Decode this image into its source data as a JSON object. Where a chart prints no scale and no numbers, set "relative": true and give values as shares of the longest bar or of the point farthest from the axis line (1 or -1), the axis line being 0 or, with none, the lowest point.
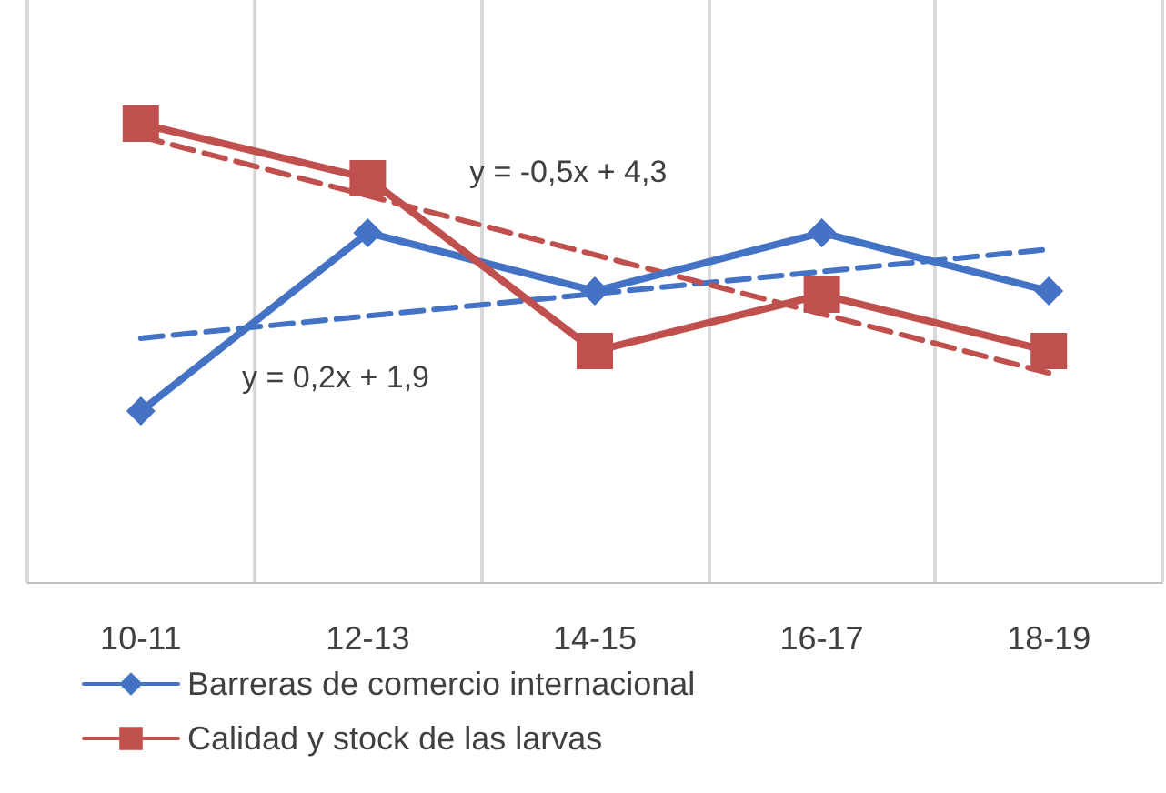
{
  "chart_data": {
    "type": "line",
    "relative": true,
    "categories": [
      "10-11",
      "12-13",
      "14-15",
      "16-17",
      "18-19"
    ],
    "series": [
      {
        "name": "Barreras de comercio internacional",
        "color": "#4472c4",
        "marker": "diamond",
        "values": [
          0.373,
          0.762,
          0.635,
          0.762,
          0.635
        ]
      },
      {
        "name": "Calidad y stock de las larvas",
        "color": "#c0504d",
        "marker": "square",
        "values": [
          1,
          0.881,
          0.504,
          0.627,
          0.504
        ]
      },
      {
        "type": "line",
        "color": "#4472c4",
        "line_style": "dashed",
        "marker": "none",
        "x": [
          "10-11",
          "18-19"
        ],
        "values": [
          0.532,
          0.726
        ]
      },
      {
        "type": "line",
        "color": "#c0504d",
        "line_style": "dashed",
        "marker": "none",
        "x": [
          "10-11",
          "18-19"
        ],
        "values": [
          0.972,
          0.456
        ]
      }
    ],
    "annotations": [
      "y = -0,5x + 4,3",
      "y = 0,2x + 1,9"
    ],
    "grid": "x",
    "legend": "bottom left"
  }
}
